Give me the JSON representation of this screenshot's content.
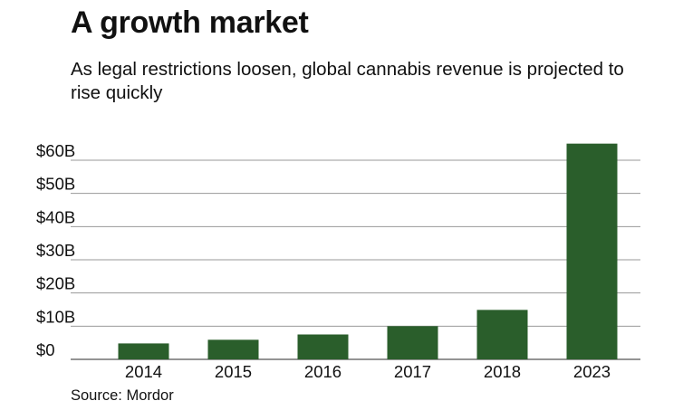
{
  "header": {
    "title": "A growth market",
    "subtitle": "As legal restrictions loosen, global cannabis revenue is projected to rise quickly"
  },
  "footer": {
    "source": "Source: Mordor"
  },
  "colors": {
    "bar": "#2a5e2b",
    "grid": "#9a9a9a",
    "axis": "#555555"
  },
  "chart_data": {
    "type": "bar",
    "title": "A growth market",
    "subtitle": "As legal restrictions loosen, global cannabis revenue is projected to rise quickly",
    "xlabel": "",
    "ylabel": "",
    "categories": [
      "2014",
      "2015",
      "2016",
      "2017",
      "2018",
      "2023"
    ],
    "values": [
      4.8,
      5.9,
      7.5,
      10.0,
      14.9,
      65.0
    ],
    "unit": "billion USD",
    "ylim": [
      0,
      60
    ],
    "yticks": [
      0,
      10,
      20,
      30,
      40,
      50,
      60
    ],
    "ytick_labels": [
      "$0",
      "$10B",
      "$20B",
      "$30B",
      "$40B",
      "$50B",
      "$60B"
    ],
    "grid": true,
    "legend": "none"
  }
}
